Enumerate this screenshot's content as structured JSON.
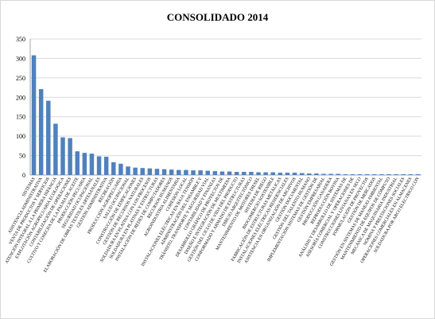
{
  "chart_data": {
    "type": "bar",
    "title": "CONSOLIDADO 2014",
    "ylim": [
      0,
      350
    ],
    "ytick_step": 50,
    "grid": true,
    "legend": "none",
    "bar_color": "#4f81bd",
    "categories": [
      "SISTEMAS",
      "ASISTENCIA ADMINISTRATIVA",
      "VENTA DE PRODUCTOS Y SERVICIOS",
      "ATENCIÓN INTEGRAL A LA PRIMERA INFANCIA",
      "EXPLOTACIÓN AGROPECUARIA ECOLOGICA",
      "CONTABILIZACIÓN DE OPERACIONES",
      "CULTIVO Y COSECHA DE LA PALMA DE ACEITE",
      "PRODUCCIÓN PECUARIA",
      "SEGURIDAD OCUPACIONAL",
      "ELABORACIÓN DE OBRAS TEXTILES ARTESANALES",
      "GESTIÓN ADMINISTRATIVA",
      "RECREACIÓN",
      "PRODUCCIÓN AGROPECUARIA",
      "SALUD OCUPACIONAL",
      "CONSTRUCCIÓN DE EDIFICACIONES",
      "GESTIÓN DE RECURSOS NATURALES",
      "SOLDADURA EN PLATINA CON LOS PROCESOS",
      "SOLDADURA EN PLATINAS Y ESTRUCTURAS",
      "INSTALACIÓN DE REDES DE COMPUTADORES",
      "RECURSOS HUMANOS",
      "AGROINDUSTRIA ALIMENTARIA",
      "COHESIÓN LOCAL",
      "INSTALACIONES ELÉCTRICAS EN BAJA TENSIÓN",
      "ADMINISTRACIÓN DEL ENSAMBLE Y",
      "TRÁNSITO, TRANSPORTE Y SEGURIDAD VIAL",
      "CONTABILIDAD Y FINANZAS",
      "DESARROLLO GRÁFICO DE PROYECTOS DE",
      "DISEÑO E INTEGRACIÓN DE MULTIMEDIA",
      "GESTIÓN DEL CICLO DE VIDA DEL PRODUCTO",
      "CONFORMADO Y ARMADO DE ESTRUCTURAS",
      "DIBUJO ARQUITECTÓNICO",
      "MANTENIMIENTO DE MOTORES DIESEL",
      "SISTEMA DE RIEGO",
      "BIOCOMERCIO SOSTENIBLE",
      "FABRICACIÓN DE ESTRUCTURAS METÁLICAS",
      "INSTALACIONES ELÉCTRICAS RESIDENCIALES",
      "ASISTENCIA EN ORGANIZACIÓN DE ARCHIVOS",
      "GESTIÓN DOCUMENTAL",
      "GESTIÓN DEL TALENTO HUMANO",
      "IMPLEMENTACIÓN SISTEMAS DE GESTIÓN DE",
      "GESTIÓN EMPRESARIAL",
      "PRODUCCIÓN GANADERA",
      "REPRODUCCIÓN BOVINA",
      "ANÁLISIS Y DESARROLLO DE SISTEMAS DE",
      "ASESORÍA COMERCIAL Y OPERACIONES DE",
      "CONSTRUCCIONES LIVIANAS EN SECO",
      "FORMULACIÓN DE PROYECTOS",
      "GESTIÓN DE MERCADOS",
      "GESTIÓN EN SISTEMAS DE MANEJO AMBIENTAL",
      "MANTENIMIENTO DE EQUIPOS DE CÓMPUTO",
      "MECÁNICA DE MAQUINARIA INDUSTRIAL",
      "NÓMINA Y PRESTACIONES SOCIALES",
      "OPERACIONES COMERCIALES EN ALMACENES",
      "SOLDADURA POR ARCO ELECTRICO CON"
    ],
    "values": [
      308,
      221,
      191,
      132,
      97,
      95,
      61,
      57,
      55,
      48,
      47,
      33,
      29,
      22,
      19,
      18,
      17,
      16,
      15,
      14,
      13,
      13,
      12,
      12,
      11,
      10,
      9,
      9,
      8,
      8,
      8,
      7,
      7,
      7,
      6,
      6,
      6,
      5,
      4,
      4,
      3,
      3,
      3,
      2,
      2,
      2,
      2,
      2,
      2,
      2,
      2,
      2,
      2,
      2
    ]
  }
}
